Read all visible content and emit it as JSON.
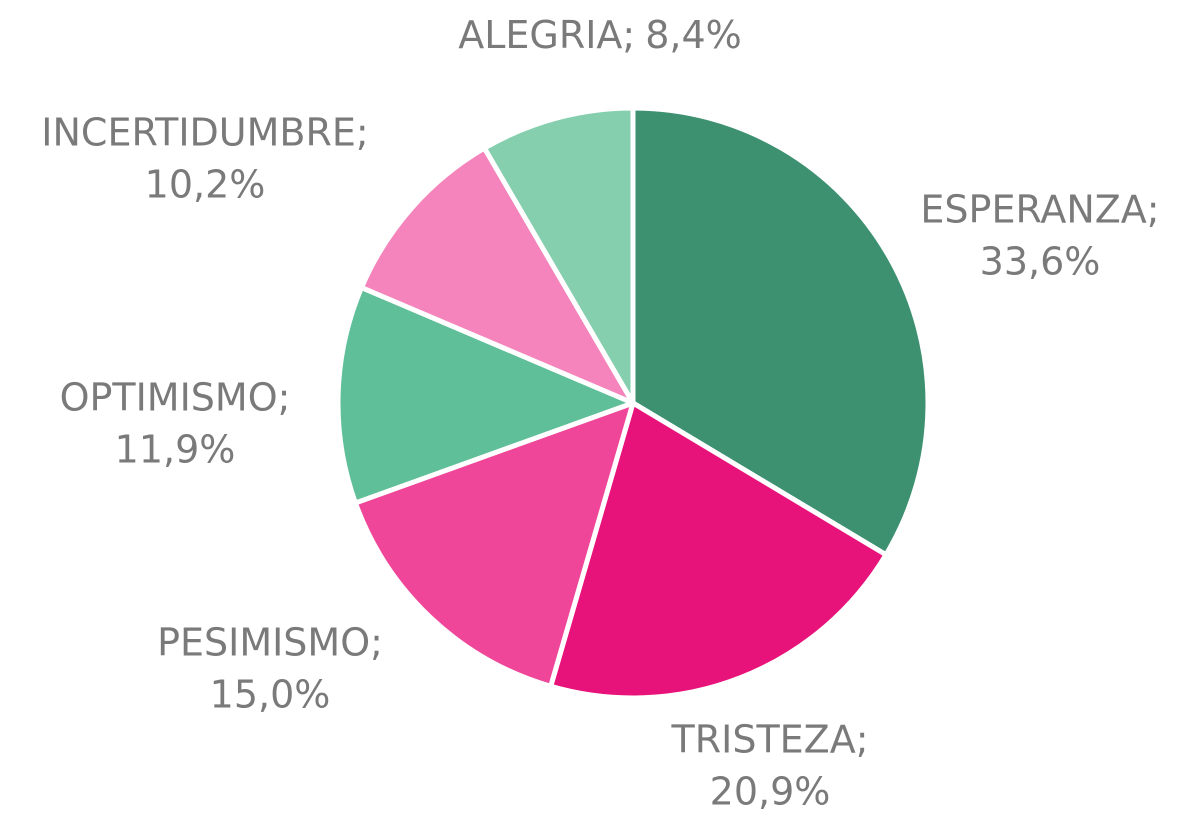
{
  "chart_data": {
    "type": "pie",
    "categories": [
      "ESPERANZA;",
      "TRISTEZA;",
      "PESIMISMO;",
      "OPTIMISMO;",
      "INCERTIDUMBRE;",
      "ALEGRIA;"
    ],
    "values": [
      33.6,
      20.9,
      15.0,
      11.9,
      10.2,
      8.4
    ],
    "value_labels": [
      "33,6%",
      "20,9%",
      "15,0%",
      "11,9%",
      "10,2%",
      "8,4%"
    ],
    "colors": [
      "#3d9170",
      "#e8137a",
      "#ef4699",
      "#5fbf98",
      "#f484bb",
      "#85cfae"
    ]
  }
}
